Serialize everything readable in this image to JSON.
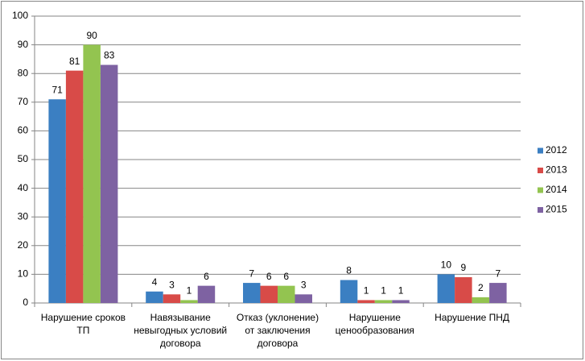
{
  "chart_data": {
    "type": "bar",
    "categories": [
      "Нарушение сроков ТП",
      "Навязывание невыгодных условий договора",
      "Отказ (уклонение) от заключения договора",
      "Нарушение ценообразования",
      "Нарушение ПНД"
    ],
    "series": [
      {
        "name": "2012",
        "color": "#3b7fc2",
        "values": [
          71,
          4,
          7,
          8,
          10
        ]
      },
      {
        "name": "2013",
        "color": "#d84b48",
        "values": [
          81,
          3,
          6,
          1,
          9
        ]
      },
      {
        "name": "2014",
        "color": "#93c450",
        "values": [
          90,
          1,
          6,
          1,
          2
        ]
      },
      {
        "name": "2015",
        "color": "#7e62a2",
        "values": [
          83,
          6,
          3,
          1,
          7
        ]
      }
    ],
    "ylim": [
      0,
      100
    ],
    "yticks": [
      0,
      10,
      20,
      30,
      40,
      50,
      60,
      70,
      80,
      90,
      100
    ],
    "grid": true,
    "legend": "right"
  }
}
